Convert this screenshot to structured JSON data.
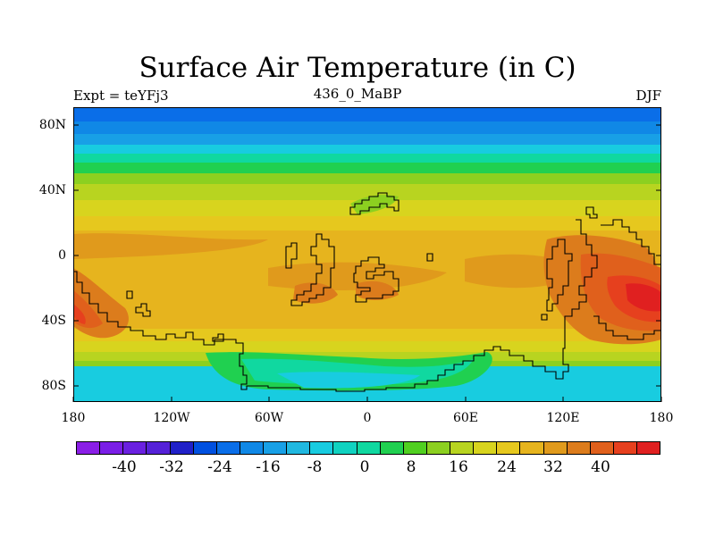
{
  "header": {
    "title": "Surface Air Temperature (in C)",
    "left": "Expt = teYFj3",
    "center": "436_0_MaBP",
    "right": "DJF"
  },
  "axes": {
    "lat_labels": [
      "80N",
      "40N",
      "0",
      "40S",
      "80S"
    ],
    "lon_labels": [
      "180",
      "120W",
      "60W",
      "0",
      "60E",
      "120E",
      "180"
    ]
  },
  "colorbar": {
    "colors": [
      "#8a1ee6",
      "#7a1ee6",
      "#6a20e0",
      "#5521d8",
      "#2020c8",
      "#0050e0",
      "#0a6ee8",
      "#1088e6",
      "#18a0e6",
      "#20b8e0",
      "#18cce0",
      "#10d2c0",
      "#10d8a0",
      "#20d050",
      "#50d020",
      "#8cd020",
      "#b8d420",
      "#d8d41e",
      "#e6c81e",
      "#e6b41e",
      "#e09a1c",
      "#dc7c1c",
      "#e0601c",
      "#e6401e",
      "#e02020"
    ],
    "labels": [
      "-40",
      "-32",
      "-24",
      "-16",
      "-8",
      "0",
      "8",
      "16",
      "24",
      "32",
      "40"
    ]
  }
}
